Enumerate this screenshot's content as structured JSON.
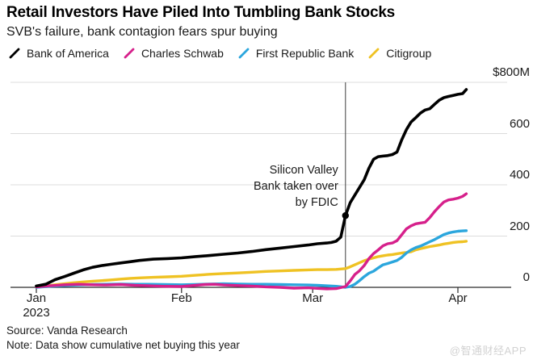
{
  "header": {
    "title": "Retail Investors Have Piled Into Tumbling Bank Stocks",
    "subtitle": "SVB's failure, bank contagion fears spur buying"
  },
  "footer": {
    "source": "Source: Vanda Research",
    "note": "Note: Data show cumulative net buying this year",
    "watermark": "@智通财经APP"
  },
  "chart_data": {
    "type": "line",
    "title": "Retail Investors Have Piled Into Tumbling Bank Stocks",
    "subtitle": "SVB's failure, bank contagion fears spur buying",
    "unit": "USD millions, cumulative net buying",
    "grid": true,
    "legend_position": "top",
    "x_axis": {
      "tick_labels": [
        "Jan",
        "Feb",
        "Mar",
        "Apr"
      ],
      "year_label": "2023",
      "tick_days": [
        0,
        31,
        59,
        90
      ]
    },
    "y_axis": {
      "position": "right",
      "tick_labels": [
        "$800M",
        "600",
        "400",
        "200",
        "0"
      ],
      "tick_values": [
        800,
        600,
        400,
        200,
        0
      ],
      "ylim": [
        0,
        800
      ]
    },
    "annotation": {
      "lines": [
        "Silicon Valley",
        "Bank taken over",
        "by FDIC"
      ],
      "day": 66,
      "marker_series": "Bank of America",
      "marker_value": 280
    },
    "series": [
      {
        "name": "Bank of America",
        "color": "#000000",
        "points": [
          [
            0,
            5
          ],
          [
            2,
            12
          ],
          [
            4,
            30
          ],
          [
            6,
            42
          ],
          [
            8,
            55
          ],
          [
            10,
            68
          ],
          [
            12,
            78
          ],
          [
            14,
            85
          ],
          [
            16,
            90
          ],
          [
            18,
            95
          ],
          [
            20,
            100
          ],
          [
            22,
            105
          ],
          [
            25,
            110
          ],
          [
            28,
            112
          ],
          [
            31,
            115
          ],
          [
            34,
            120
          ],
          [
            37,
            124
          ],
          [
            40,
            129
          ],
          [
            43,
            134
          ],
          [
            46,
            140
          ],
          [
            49,
            147
          ],
          [
            52,
            153
          ],
          [
            55,
            159
          ],
          [
            58,
            165
          ],
          [
            60,
            170
          ],
          [
            62,
            173
          ],
          [
            63,
            175
          ],
          [
            64,
            180
          ],
          [
            65,
            196
          ],
          [
            66,
            280
          ],
          [
            67,
            330
          ],
          [
            68,
            360
          ],
          [
            69,
            390
          ],
          [
            70,
            420
          ],
          [
            71,
            465
          ],
          [
            72,
            500
          ],
          [
            73,
            510
          ],
          [
            74,
            512
          ],
          [
            75,
            514
          ],
          [
            76,
            518
          ],
          [
            77,
            528
          ],
          [
            78,
            575
          ],
          [
            79,
            615
          ],
          [
            80,
            645
          ],
          [
            81,
            662
          ],
          [
            82,
            680
          ],
          [
            83,
            692
          ],
          [
            84,
            697
          ],
          [
            85,
            714
          ],
          [
            86,
            730
          ],
          [
            87,
            740
          ],
          [
            88,
            745
          ],
          [
            89,
            749
          ],
          [
            90,
            753
          ],
          [
            91,
            756
          ],
          [
            91.8,
            772
          ]
        ]
      },
      {
        "name": "Charles Schwab",
        "color": "#d6208b",
        "points": [
          [
            0,
            2
          ],
          [
            3,
            6
          ],
          [
            6,
            10
          ],
          [
            9,
            12
          ],
          [
            12,
            10
          ],
          [
            15,
            9
          ],
          [
            18,
            11
          ],
          [
            21,
            8
          ],
          [
            24,
            6
          ],
          [
            27,
            4
          ],
          [
            31,
            3
          ],
          [
            34,
            8
          ],
          [
            36,
            11
          ],
          [
            38,
            12
          ],
          [
            40,
            9
          ],
          [
            43,
            7
          ],
          [
            46,
            5
          ],
          [
            49,
            2
          ],
          [
            52,
            0
          ],
          [
            55,
            -3
          ],
          [
            58,
            -2
          ],
          [
            60,
            -4
          ],
          [
            62,
            -6
          ],
          [
            64,
            -5
          ],
          [
            66,
            3
          ],
          [
            67,
            25
          ],
          [
            68,
            50
          ],
          [
            69,
            65
          ],
          [
            70,
            85
          ],
          [
            71,
            112
          ],
          [
            72,
            132
          ],
          [
            73,
            146
          ],
          [
            74,
            162
          ],
          [
            75,
            170
          ],
          [
            76,
            173
          ],
          [
            77,
            182
          ],
          [
            78,
            205
          ],
          [
            79,
            228
          ],
          [
            80,
            240
          ],
          [
            81,
            248
          ],
          [
            82,
            251
          ],
          [
            83,
            254
          ],
          [
            84,
            272
          ],
          [
            85,
            295
          ],
          [
            86,
            315
          ],
          [
            87,
            333
          ],
          [
            88,
            341
          ],
          [
            89,
            344
          ],
          [
            90,
            348
          ],
          [
            91,
            355
          ],
          [
            91.8,
            365
          ]
        ]
      },
      {
        "name": "First Republic Bank",
        "color": "#2ba6dd",
        "points": [
          [
            0,
            0
          ],
          [
            3,
            4
          ],
          [
            6,
            7
          ],
          [
            9,
            9
          ],
          [
            12,
            11
          ],
          [
            15,
            12
          ],
          [
            18,
            13
          ],
          [
            21,
            12
          ],
          [
            24,
            12
          ],
          [
            27,
            11
          ],
          [
            31,
            10
          ],
          [
            34,
            11
          ],
          [
            37,
            13
          ],
          [
            40,
            14
          ],
          [
            43,
            13
          ],
          [
            46,
            12
          ],
          [
            49,
            12
          ],
          [
            52,
            11
          ],
          [
            55,
            10
          ],
          [
            58,
            9
          ],
          [
            60,
            8
          ],
          [
            62,
            6
          ],
          [
            64,
            4
          ],
          [
            66,
            0
          ],
          [
            67,
            3
          ],
          [
            68,
            12
          ],
          [
            69,
            26
          ],
          [
            70,
            42
          ],
          [
            71,
            55
          ],
          [
            72,
            63
          ],
          [
            73,
            76
          ],
          [
            74,
            88
          ],
          [
            75,
            93
          ],
          [
            76,
            99
          ],
          [
            77,
            105
          ],
          [
            78,
            117
          ],
          [
            79,
            134
          ],
          [
            80,
            146
          ],
          [
            81,
            155
          ],
          [
            82,
            161
          ],
          [
            83,
            169
          ],
          [
            84,
            178
          ],
          [
            85,
            186
          ],
          [
            86,
            196
          ],
          [
            87,
            206
          ],
          [
            88,
            212
          ],
          [
            89,
            216
          ],
          [
            90,
            219
          ],
          [
            91,
            220
          ],
          [
            91.8,
            221
          ]
        ]
      },
      {
        "name": "Citigroup",
        "color": "#efc223",
        "points": [
          [
            0,
            0
          ],
          [
            2,
            5
          ],
          [
            4,
            10
          ],
          [
            6,
            14
          ],
          [
            8,
            18
          ],
          [
            10,
            21
          ],
          [
            12,
            24
          ],
          [
            14,
            26
          ],
          [
            16,
            29
          ],
          [
            18,
            32
          ],
          [
            20,
            35
          ],
          [
            22,
            37
          ],
          [
            25,
            39
          ],
          [
            28,
            41
          ],
          [
            31,
            43
          ],
          [
            34,
            47
          ],
          [
            37,
            51
          ],
          [
            40,
            54
          ],
          [
            43,
            56
          ],
          [
            46,
            59
          ],
          [
            49,
            62
          ],
          [
            52,
            64
          ],
          [
            55,
            66
          ],
          [
            58,
            68
          ],
          [
            60,
            69
          ],
          [
            62,
            69
          ],
          [
            64,
            70
          ],
          [
            66,
            73
          ],
          [
            67,
            80
          ],
          [
            68,
            88
          ],
          [
            69,
            96
          ],
          [
            70,
            104
          ],
          [
            71,
            110
          ],
          [
            72,
            115
          ],
          [
            73,
            120
          ],
          [
            74,
            123
          ],
          [
            75,
            126
          ],
          [
            76,
            128
          ],
          [
            77,
            131
          ],
          [
            78,
            134
          ],
          [
            79,
            136
          ],
          [
            80,
            139
          ],
          [
            81,
            146
          ],
          [
            82,
            151
          ],
          [
            83,
            155
          ],
          [
            84,
            159
          ],
          [
            85,
            162
          ],
          [
            86,
            165
          ],
          [
            87,
            169
          ],
          [
            88,
            172
          ],
          [
            89,
            175
          ],
          [
            90,
            177
          ],
          [
            91,
            178
          ],
          [
            91.8,
            180
          ]
        ]
      }
    ]
  }
}
